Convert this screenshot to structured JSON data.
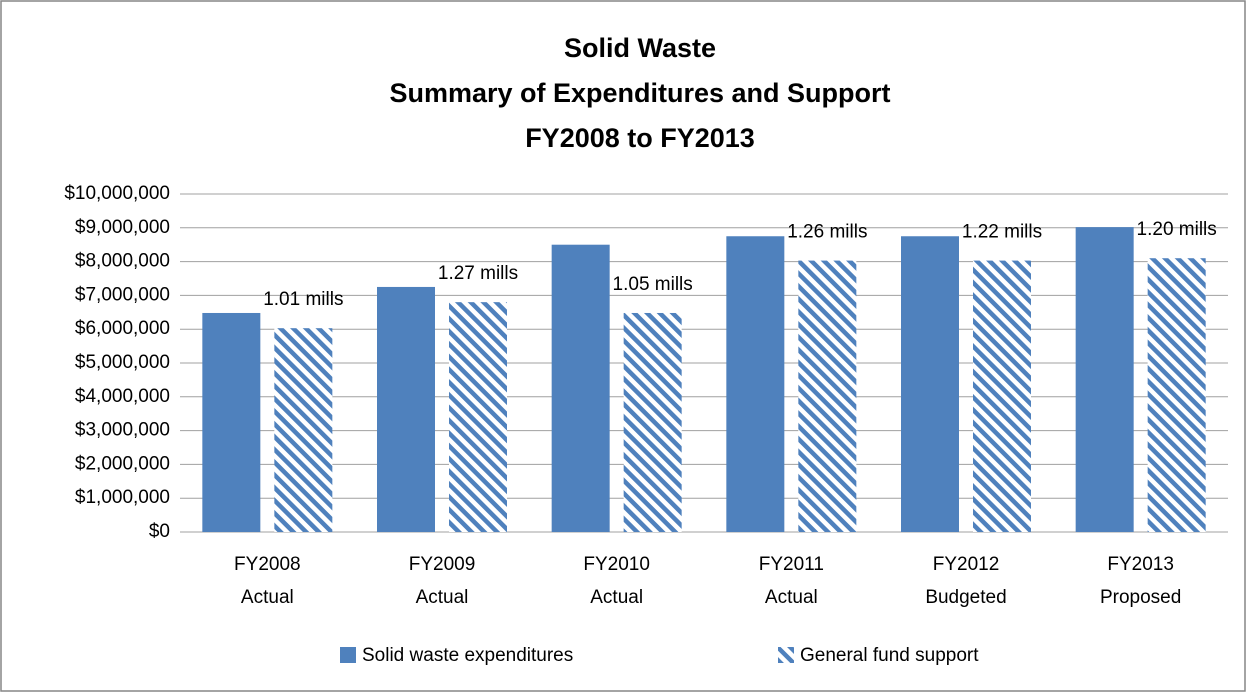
{
  "chart_data": {
    "type": "bar",
    "title": [
      "Solid Waste",
      "Summary of Expenditures and Support",
      "FY2008 to FY2013"
    ],
    "categories": [
      [
        "FY2008",
        "Actual"
      ],
      [
        "FY2009",
        "Actual"
      ],
      [
        "FY2010",
        "Actual"
      ],
      [
        "FY2011",
        "Actual"
      ],
      [
        "FY2012",
        "Budgeted"
      ],
      [
        "FY2013",
        "Proposed"
      ]
    ],
    "series": [
      {
        "name": "Solid waste expenditures",
        "color": "#4f81bd",
        "pattern": "solid",
        "values": [
          6480000,
          7250000,
          8500000,
          8750000,
          8750000,
          9020000
        ]
      },
      {
        "name": "General fund support",
        "color": "#4f81bd",
        "pattern": "hatch",
        "values": [
          6030000,
          6800000,
          6480000,
          8030000,
          8030000,
          8100000
        ]
      }
    ],
    "annotations": [
      "1.01 mills",
      "1.27 mills",
      "1.05 mills",
      "1.26 mills",
      "1.22 mills",
      "1.20 mills"
    ],
    "ylim": [
      0,
      10000000
    ],
    "yticks": [
      {
        "value": 0,
        "label": "$0"
      },
      {
        "value": 1000000,
        "label": "$1,000,000"
      },
      {
        "value": 2000000,
        "label": "$2,000,000"
      },
      {
        "value": 3000000,
        "label": "$3,000,000"
      },
      {
        "value": 4000000,
        "label": "$4,000,000"
      },
      {
        "value": 5000000,
        "label": "$5,000,000"
      },
      {
        "value": 6000000,
        "label": "$6,000,000"
      },
      {
        "value": 7000000,
        "label": "$7,000,000"
      },
      {
        "value": 8000000,
        "label": "$8,000,000"
      },
      {
        "value": 9000000,
        "label": "$9,000,000"
      },
      {
        "value": 10000000,
        "label": "$10,000,000"
      }
    ],
    "grid": true,
    "legend": "bottom"
  }
}
